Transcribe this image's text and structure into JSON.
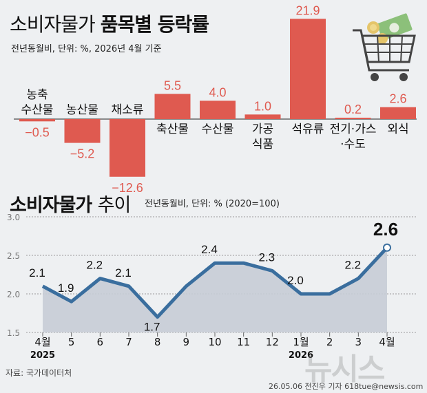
{
  "header": {
    "title_light": "소비자물가 ",
    "title_bold": "품목별 등락률",
    "subtitle": "전년동월비, 단위: %, 2026년 4월 기준"
  },
  "section2": {
    "title_light": "소비자물가 ",
    "title_normal": "추이",
    "subtitle": "전년동월비, 단위: % (2020=100)"
  },
  "footer": {
    "source": "자료: 국가데이터처",
    "credit": "26.05.06 전진우 기자 618tue@newsis.com",
    "watermark": "뉴시스"
  },
  "colors": {
    "bar": "#df5a50",
    "line": "#3a6e9e",
    "area": "#c7ccd6",
    "neg_label": "#df5a50"
  },
  "chart_data": [
    {
      "type": "bar",
      "title": "품목별 등락률",
      "categories": [
        "농축\n수산물",
        "농산물",
        "채소류",
        "축산물",
        "수산물",
        "가공\n식품",
        "석유류",
        "전기·가스\n·수도",
        "외식"
      ],
      "values": [
        -0.5,
        -5.2,
        -12.6,
        5.5,
        4.0,
        1.0,
        21.9,
        0.2,
        2.6
      ],
      "value_labels": [
        "−0.5",
        "−5.2",
        "−12.6",
        "5.5",
        "4.0",
        "1.0",
        "21.9",
        "0.2",
        "2.6"
      ]
    },
    {
      "type": "area",
      "title": "소비자물가 추이",
      "x": [
        "4월",
        "5",
        "6",
        "7",
        "8",
        "9",
        "10",
        "11",
        "12",
        "1월",
        "2",
        "3",
        "4월"
      ],
      "x_sublabels": [
        "2025",
        "",
        "",
        "",
        "",
        "",
        "",
        "",
        "",
        "2026",
        "",
        "",
        ""
      ],
      "values": [
        2.1,
        1.9,
        2.2,
        2.1,
        1.7,
        2.1,
        2.4,
        2.4,
        2.3,
        2.0,
        2.0,
        2.2,
        2.6
      ],
      "point_labels": [
        "2.1",
        "1.9",
        "2.2",
        "2.1",
        "1.7",
        "",
        "2.4",
        "",
        "2.3",
        "2.0",
        "",
        "2.2",
        "2.6"
      ],
      "yticks": [
        "3.0",
        "2.5",
        "2.0",
        "1.5"
      ],
      "ylim": [
        1.5,
        3.0
      ],
      "grid": true
    }
  ]
}
